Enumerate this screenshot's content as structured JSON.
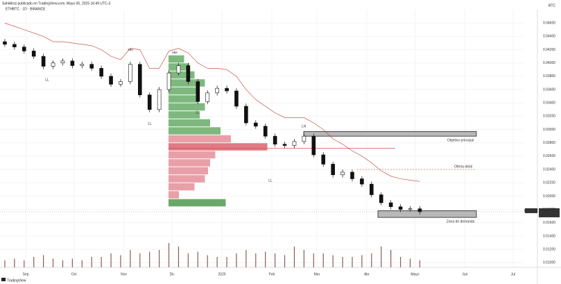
{
  "chart_data": {
    "type": "candlestick",
    "title": "SahilArss publicado en TradingView.com, Mayo 05, 2025 16:49 UTC-3",
    "subtitle": "ETHBTC · 1D · BINANCE",
    "footer": "TradingView",
    "currency": "BTC",
    "symbol": "ETHBTC",
    "countdown": "04:11:23",
    "x": [
      4,
      10,
      16,
      22,
      28,
      34,
      40,
      46,
      52,
      58,
      64,
      70,
      76,
      82,
      88,
      94,
      100,
      106,
      112,
      118,
      124,
      130,
      136,
      142,
      148,
      154,
      160,
      166,
      172,
      178,
      184,
      190,
      196,
      202,
      208,
      214,
      220,
      226,
      232,
      238,
      244,
      250,
      256,
      262
    ],
    "open": [
      0.0432,
      0.0428,
      0.0424,
      0.0418,
      0.041,
      0.0395,
      0.04,
      0.0403,
      0.0396,
      0.0398,
      0.0392,
      0.038,
      0.0368,
      0.0372,
      0.0398,
      0.0352,
      0.033,
      0.036,
      0.0385,
      0.0396,
      0.0372,
      0.0342,
      0.0355,
      0.0362,
      0.0358,
      0.0335,
      0.031,
      0.0305,
      0.029,
      0.0278,
      0.0276,
      0.0282,
      0.029,
      0.0262,
      0.0248,
      0.0232,
      0.0236,
      0.0226,
      0.0218,
      0.0202,
      0.019,
      0.0184,
      0.018,
      0.0181
    ],
    "high": [
      0.0436,
      0.0432,
      0.0428,
      0.0422,
      0.0414,
      0.0404,
      0.0407,
      0.0407,
      0.0402,
      0.0402,
      0.0396,
      0.0384,
      0.0376,
      0.0402,
      0.0402,
      0.0356,
      0.0364,
      0.0389,
      0.04,
      0.04,
      0.0376,
      0.0359,
      0.0366,
      0.0366,
      0.0362,
      0.0339,
      0.0314,
      0.0309,
      0.0294,
      0.0282,
      0.0286,
      0.0294,
      0.0294,
      0.0266,
      0.0252,
      0.024,
      0.024,
      0.023,
      0.0222,
      0.0206,
      0.0194,
      0.0188,
      0.0185,
      0.0185
    ],
    "low": [
      0.0424,
      0.042,
      0.0414,
      0.0406,
      0.0391,
      0.0391,
      0.0396,
      0.0392,
      0.0392,
      0.0388,
      0.0376,
      0.0364,
      0.0364,
      0.0368,
      0.0348,
      0.0326,
      0.0326,
      0.0356,
      0.0381,
      0.0368,
      0.0338,
      0.0338,
      0.0351,
      0.0354,
      0.0331,
      0.0306,
      0.0301,
      0.0286,
      0.0274,
      0.0272,
      0.0272,
      0.0278,
      0.0258,
      0.0244,
      0.0228,
      0.0228,
      0.0222,
      0.0214,
      0.0198,
      0.0186,
      0.018,
      0.0176,
      0.0176,
      0.01725
    ],
    "close": [
      0.0428,
      0.0424,
      0.0418,
      0.041,
      0.0395,
      0.04,
      0.0403,
      0.0396,
      0.0398,
      0.0392,
      0.038,
      0.0368,
      0.0372,
      0.0398,
      0.0352,
      0.033,
      0.036,
      0.0385,
      0.0396,
      0.0372,
      0.0342,
      0.0355,
      0.0362,
      0.0358,
      0.0335,
      0.031,
      0.0305,
      0.029,
      0.0278,
      0.0276,
      0.0282,
      0.029,
      0.0262,
      0.0248,
      0.0232,
      0.0236,
      0.0226,
      0.0218,
      0.0202,
      0.019,
      0.0184,
      0.018,
      0.0181,
      0.01765
    ],
    "volume": [
      2,
      2.5,
      2,
      3,
      3.5,
      2.5,
      2,
      2.5,
      2,
      3,
      3,
      4,
      3.5,
      5,
      4,
      4.5,
      5,
      7,
      6,
      4,
      4.5,
      3.5,
      3,
      3,
      4,
      5,
      4,
      4.5,
      4,
      3.5,
      6,
      5,
      4,
      4,
      3.5,
      3,
      3,
      3.5,
      4,
      6,
      5,
      3,
      2.5,
      2
    ],
    "volume_lim": [
      0,
      10
    ],
    "volume_color": "#8a5a5a",
    "trail": [
      0.046,
      0.0455,
      0.045,
      0.0445,
      0.044,
      0.0432,
      0.0432,
      0.043,
      0.0428,
      0.0426,
      0.042,
      0.041,
      0.0405,
      0.0422,
      0.042,
      0.0392,
      0.0392,
      0.0418,
      0.0422,
      0.0415,
      0.04,
      0.0392,
      0.0392,
      0.039,
      0.038,
      0.036,
      0.0345,
      0.0335,
      0.0325,
      0.0318,
      0.0318,
      0.0318,
      0.031,
      0.03,
      0.0286,
      0.0278,
      0.0268,
      0.026,
      0.025,
      0.0238,
      0.023,
      0.0226,
      0.0224,
      0.0222
    ],
    "trail_color": "#c0392b",
    "up_color": "#ffffff",
    "down_color": "#111111",
    "profile": {
      "bins": [
        0.0184,
        0.0196,
        0.0208,
        0.022,
        0.0232,
        0.0244,
        0.0256,
        0.0268,
        0.028,
        0.0292,
        0.0304,
        0.0316,
        0.0328,
        0.034,
        0.0352,
        0.0364,
        0.0376,
        0.0388,
        0.04,
        0.0412
      ],
      "values": [
        55,
        10,
        25,
        35,
        38,
        40,
        45,
        95,
        60,
        50,
        40,
        30,
        35,
        28,
        30,
        35,
        25,
        20,
        15
      ],
      "colors": [
        "#6aa86a",
        "#e8a0a8",
        "#e8a0a8",
        "#e8a0a8",
        "#e8a0a8",
        "#e8a0a8",
        "#e8a0a8",
        "#e07a86",
        "#e8a0a8",
        "#7fb87f",
        "#7fb87f",
        "#7fb87f",
        "#7fb87f",
        "#7fb87f",
        "#7fb87f",
        "#7fb87f",
        "#7fb87f",
        "#7fb87f",
        "#7fb87f"
      ],
      "lim": [
        0,
        100
      ]
    },
    "poc": 0.0272,
    "zones": [
      {
        "label": "Objetivo principal",
        "range": [
          0.029,
          0.0297
        ]
      },
      {
        "label": "Zona de demanda",
        "range": [
          0.0168,
          0.0178
        ]
      }
    ],
    "levels": [
      {
        "label": "Oferta debil",
        "value": 0.024
      }
    ],
    "pivots": [
      "HH",
      "HH",
      "LL",
      "LL",
      "LH",
      "LL",
      "LL"
    ],
    "xlim": [
      1,
      326.5
    ],
    "xticks": [
      {
        "value": 17,
        "label": "Sep"
      },
      {
        "value": 47,
        "label": "Oct"
      },
      {
        "value": 78,
        "label": "Nov"
      },
      {
        "value": 108,
        "label": "Dic"
      },
      {
        "value": 139,
        "label": "2025"
      },
      {
        "value": 170,
        "label": "Feb"
      },
      {
        "value": 198,
        "label": "Mar"
      },
      {
        "value": 229,
        "label": "Abr"
      },
      {
        "value": 259,
        "label": "Mayo"
      },
      {
        "value": 290,
        "label": "Jun"
      },
      {
        "value": 320,
        "label": "Jul"
      }
    ],
    "ylim": [
      0.0093,
      0.048
    ],
    "yticks": [
      {
        "value": 0.046,
        "label": "0.04600"
      },
      {
        "value": 0.044,
        "label": "0.04400"
      },
      {
        "value": 0.042,
        "label": "0.04200"
      },
      {
        "value": 0.04,
        "label": "0.04000"
      },
      {
        "value": 0.038,
        "label": "0.03800"
      },
      {
        "value": 0.036,
        "label": "0.03600"
      },
      {
        "value": 0.034,
        "label": "0.03400"
      },
      {
        "value": 0.032,
        "label": "0.03200"
      },
      {
        "value": 0.03,
        "label": "0.03000"
      },
      {
        "value": 0.028,
        "label": "0.02800"
      },
      {
        "value": 0.026,
        "label": "0.02600"
      },
      {
        "value": 0.024,
        "label": "0.02400"
      },
      {
        "value": 0.022,
        "label": "0.02200"
      },
      {
        "value": 0.02,
        "label": "0.02000"
      },
      {
        "value": 0.018,
        "label": "0.01800"
      },
      {
        "value": 0.016,
        "label": "0.01600"
      },
      {
        "value": 0.014,
        "label": "0.01400"
      },
      {
        "value": 0.012,
        "label": "0.01200"
      },
      {
        "value": 0.01,
        "label": "0.01000"
      }
    ],
    "grid": true
  }
}
